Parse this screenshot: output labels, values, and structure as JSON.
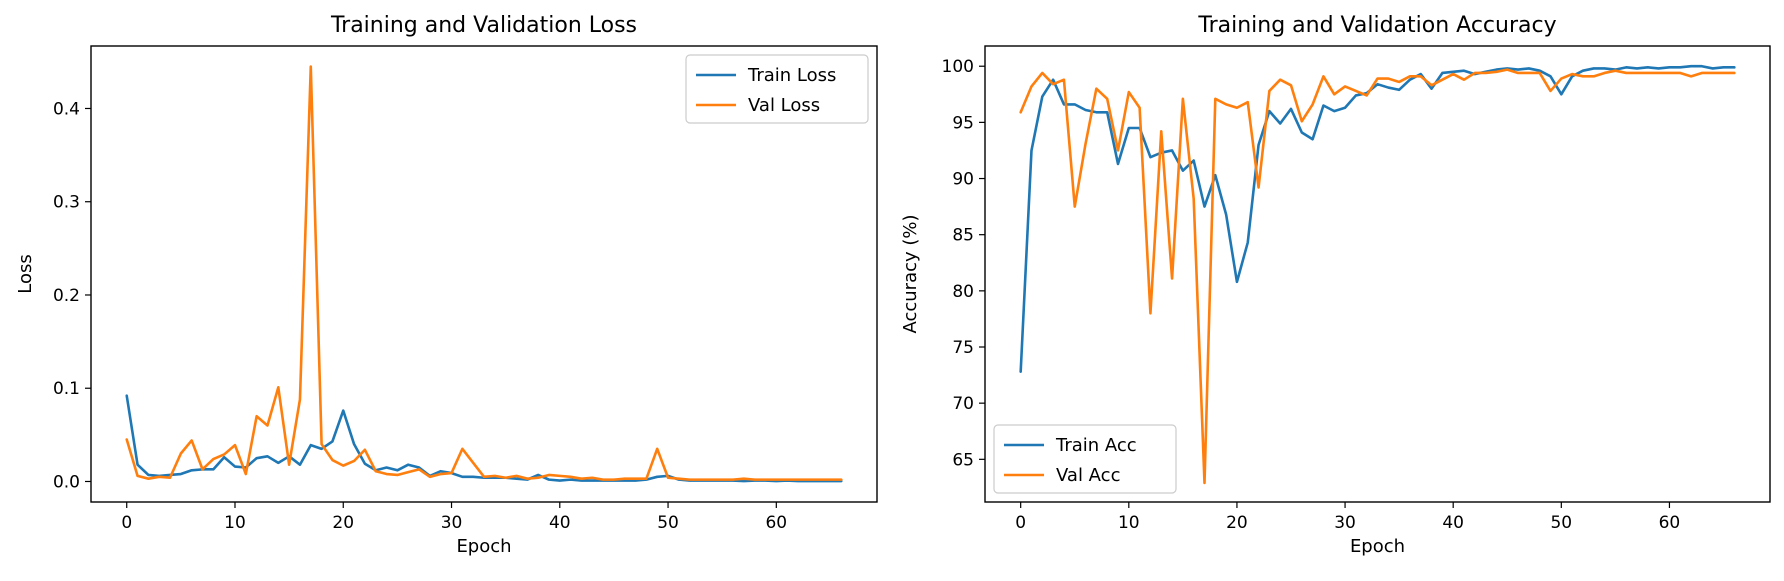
{
  "chart_data": [
    {
      "type": "line",
      "title": "Training and Validation Loss",
      "xlabel": "Epoch",
      "ylabel": "Loss",
      "xlim": [
        -3.3,
        69.3
      ],
      "ylim": [
        -0.022,
        0.467
      ],
      "xticks": [
        0,
        10,
        20,
        30,
        40,
        50,
        60
      ],
      "yticks": [
        0.0,
        0.1,
        0.2,
        0.3,
        0.4
      ],
      "ytick_labels": [
        "0.0",
        "0.1",
        "0.2",
        "0.3",
        "0.4"
      ],
      "legend_position": "top-right",
      "x": [
        0,
        1,
        2,
        3,
        4,
        5,
        6,
        7,
        8,
        9,
        10,
        11,
        12,
        13,
        14,
        15,
        16,
        17,
        18,
        19,
        20,
        21,
        22,
        23,
        24,
        25,
        26,
        27,
        28,
        29,
        30,
        31,
        32,
        33,
        34,
        35,
        36,
        37,
        38,
        39,
        40,
        41,
        42,
        43,
        44,
        45,
        46,
        47,
        48,
        49,
        50,
        51,
        52,
        53,
        54,
        55,
        56,
        57,
        58,
        59,
        60,
        61,
        62,
        63,
        64,
        65,
        66
      ],
      "series": [
        {
          "name": "Train Loss",
          "color": "#1f77b4",
          "values": [
            0.092,
            0.018,
            0.007,
            0.006,
            0.007,
            0.008,
            0.012,
            0.013,
            0.013,
            0.026,
            0.016,
            0.015,
            0.025,
            0.027,
            0.02,
            0.027,
            0.018,
            0.039,
            0.035,
            0.043,
            0.076,
            0.04,
            0.019,
            0.012,
            0.015,
            0.012,
            0.018,
            0.015,
            0.006,
            0.011,
            0.009,
            0.005,
            0.005,
            0.004,
            0.004,
            0.004,
            0.003,
            0.002,
            0.007,
            0.002,
            0.001,
            0.002,
            0.001,
            0.001,
            0.001,
            0.001,
            0.001,
            0.001,
            0.002,
            0.005,
            0.006,
            0.002,
            0.001,
            0.001,
            0.001,
            0.001,
            0.001,
            0.0005,
            0.001,
            0.001,
            0.0005,
            0.001,
            0.0005,
            0.0005,
            0.0005,
            0.0005,
            0.0005
          ]
        },
        {
          "name": "Val Loss",
          "color": "#ff7f0e",
          "values": [
            0.045,
            0.006,
            0.003,
            0.005,
            0.004,
            0.03,
            0.044,
            0.013,
            0.024,
            0.029,
            0.039,
            0.008,
            0.07,
            0.06,
            0.101,
            0.018,
            0.088,
            0.445,
            0.04,
            0.023,
            0.017,
            0.022,
            0.034,
            0.011,
            0.008,
            0.007,
            0.01,
            0.013,
            0.005,
            0.008,
            0.009,
            0.035,
            0.02,
            0.005,
            0.006,
            0.004,
            0.006,
            0.003,
            0.004,
            0.007,
            0.006,
            0.005,
            0.003,
            0.004,
            0.002,
            0.002,
            0.003,
            0.003,
            0.003,
            0.035,
            0.004,
            0.003,
            0.002,
            0.002,
            0.002,
            0.002,
            0.002,
            0.003,
            0.002,
            0.002,
            0.002,
            0.002,
            0.002,
            0.002,
            0.002,
            0.002,
            0.002
          ]
        }
      ]
    },
    {
      "type": "line",
      "title": "Training and Validation Accuracy",
      "xlabel": "Epoch",
      "ylabel": "Accuracy (%)",
      "xlim": [
        -3.3,
        69.3
      ],
      "ylim": [
        61.2,
        101.8
      ],
      "xticks": [
        0,
        10,
        20,
        30,
        40,
        50,
        60
      ],
      "yticks": [
        65,
        70,
        75,
        80,
        85,
        90,
        95,
        100
      ],
      "ytick_labels": [
        "65",
        "70",
        "75",
        "80",
        "85",
        "90",
        "95",
        "100"
      ],
      "legend_position": "bottom-left",
      "x": [
        0,
        1,
        2,
        3,
        4,
        5,
        6,
        7,
        8,
        9,
        10,
        11,
        12,
        13,
        14,
        15,
        16,
        17,
        18,
        19,
        20,
        21,
        22,
        23,
        24,
        25,
        26,
        27,
        28,
        29,
        30,
        31,
        32,
        33,
        34,
        35,
        36,
        37,
        38,
        39,
        40,
        41,
        42,
        43,
        44,
        45,
        46,
        47,
        48,
        49,
        50,
        51,
        52,
        53,
        54,
        55,
        56,
        57,
        58,
        59,
        60,
        61,
        62,
        63,
        64,
        65,
        66
      ],
      "series": [
        {
          "name": "Train Acc",
          "color": "#1f77b4",
          "values": [
            72.8,
            92.5,
            97.3,
            98.8,
            96.6,
            96.6,
            96.1,
            95.9,
            95.9,
            91.3,
            94.5,
            94.5,
            91.9,
            92.3,
            92.5,
            90.7,
            91.6,
            87.5,
            90.3,
            86.8,
            80.8,
            84.3,
            93.0,
            96.0,
            94.9,
            96.2,
            94.1,
            93.5,
            96.5,
            96.0,
            96.3,
            97.4,
            97.6,
            98.4,
            98.1,
            97.9,
            98.8,
            99.3,
            98.0,
            99.4,
            99.5,
            99.6,
            99.3,
            99.5,
            99.7,
            99.8,
            99.7,
            99.8,
            99.6,
            99.1,
            97.5,
            99.1,
            99.6,
            99.8,
            99.8,
            99.7,
            99.9,
            99.8,
            99.9,
            99.8,
            99.9,
            99.9,
            100.0,
            100.0,
            99.8,
            99.9,
            99.9
          ]
        },
        {
          "name": "Val Acc",
          "color": "#ff7f0e",
          "values": [
            95.9,
            98.2,
            99.4,
            98.4,
            98.8,
            87.5,
            93.1,
            98.0,
            97.1,
            92.5,
            97.7,
            96.3,
            78.0,
            94.2,
            81.1,
            97.1,
            88.2,
            62.9,
            97.1,
            96.6,
            96.3,
            96.8,
            89.2,
            97.8,
            98.8,
            98.3,
            95.1,
            96.6,
            99.1,
            97.5,
            98.2,
            97.8,
            97.4,
            98.9,
            98.9,
            98.6,
            99.1,
            99.1,
            98.3,
            98.8,
            99.3,
            98.8,
            99.4,
            99.4,
            99.5,
            99.7,
            99.4,
            99.4,
            99.4,
            97.8,
            98.9,
            99.3,
            99.1,
            99.1,
            99.4,
            99.6,
            99.4,
            99.4,
            99.4,
            99.4,
            99.4,
            99.4,
            99.1,
            99.4,
            99.4,
            99.4,
            99.4
          ]
        }
      ]
    }
  ]
}
